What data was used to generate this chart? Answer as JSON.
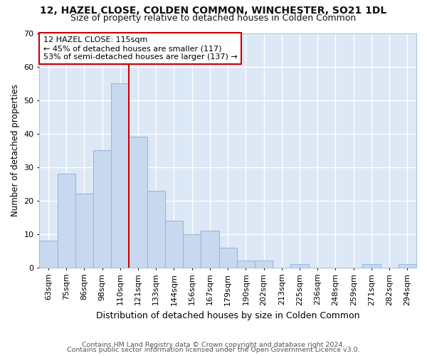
{
  "title1": "12, HAZEL CLOSE, COLDEN COMMON, WINCHESTER, SO21 1DL",
  "title2": "Size of property relative to detached houses in Colden Common",
  "xlabel": "Distribution of detached houses by size in Colden Common",
  "ylabel": "Number of detached properties",
  "categories": [
    "63sqm",
    "75sqm",
    "86sqm",
    "98sqm",
    "110sqm",
    "121sqm",
    "133sqm",
    "144sqm",
    "156sqm",
    "167sqm",
    "179sqm",
    "190sqm",
    "202sqm",
    "213sqm",
    "225sqm",
    "236sqm",
    "248sqm",
    "259sqm",
    "271sqm",
    "282sqm",
    "294sqm"
  ],
  "values": [
    8,
    28,
    22,
    35,
    55,
    39,
    23,
    14,
    10,
    11,
    6,
    2,
    2,
    0,
    1,
    0,
    0,
    0,
    1,
    0,
    1
  ],
  "bar_color": "#c8d9ef",
  "bar_edge_color": "#9ab8db",
  "vline_x": 4.5,
  "vline_color": "#cc0000",
  "annotation_line1": "12 HAZEL CLOSE: 115sqm",
  "annotation_line2": "← 45% of detached houses are smaller (117)",
  "annotation_line3": "53% of semi-detached houses are larger (137) →",
  "annotation_box_facecolor": "#ffffff",
  "annotation_box_edgecolor": "#cc0000",
  "ylim": [
    0,
    70
  ],
  "yticks": [
    0,
    10,
    20,
    30,
    40,
    50,
    60,
    70
  ],
  "plot_bg_color": "#dce8f5",
  "fig_bg_color": "#ffffff",
  "grid_color": "#ffffff",
  "footer1": "Contains HM Land Registry data © Crown copyright and database right 2024.",
  "footer2": "Contains public sector information licensed under the Open Government Licence v3.0.",
  "title1_fontsize": 10,
  "title2_fontsize": 9,
  "ylabel_fontsize": 8.5,
  "xlabel_fontsize": 9,
  "tick_fontsize": 8,
  "annotation_fontsize": 8,
  "footer_fontsize": 6.8
}
